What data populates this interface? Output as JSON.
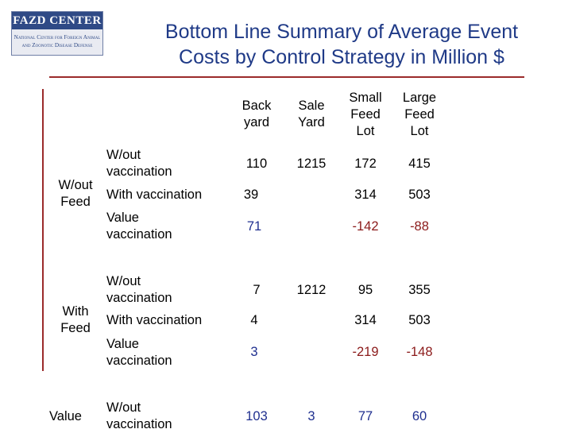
{
  "logo": {
    "name": "FAZD CENTER",
    "line1": "National Center for Foreign Animal",
    "line2": "and Zoonotic Disease Defense"
  },
  "title": {
    "line1": "Bottom Line Summary of Average Event",
    "line2": "Costs by Control Strategy in Million $"
  },
  "columns": [
    {
      "line1": "Back",
      "line2": "yard",
      "line3": ""
    },
    {
      "line1": "Sale",
      "line2": "Yard",
      "line3": ""
    },
    {
      "line1": "Small",
      "line2": "Feed",
      "line3": "Lot"
    },
    {
      "line1": "Large",
      "line2": "Feed",
      "line3": "Lot"
    }
  ],
  "groups": [
    {
      "line1": "W/out",
      "line2": "Feed"
    },
    {
      "line1": "With",
      "line2": "Feed"
    },
    {
      "line1": "Value",
      "line2": ""
    }
  ],
  "rows": [
    {
      "label1": "W/out",
      "label2": "vaccination",
      "values": [
        "110",
        "1215",
        "172",
        "415"
      ]
    },
    {
      "label1": "With vaccination",
      "label2": "",
      "values": [
        "39",
        "",
        "314",
        "503"
      ]
    },
    {
      "label1": "Value",
      "label2": "vaccination",
      "values": [
        "71",
        "",
        "-142",
        "-88"
      ]
    },
    {
      "label1": "W/out",
      "label2": "vaccination",
      "values": [
        "7",
        "1212",
        "95",
        "355"
      ]
    },
    {
      "label1": "With vaccination",
      "label2": "",
      "values": [
        "4",
        "",
        "314",
        "503"
      ]
    },
    {
      "label1": "Value",
      "label2": "vaccination",
      "values": [
        "3",
        "",
        "-219",
        "-148"
      ]
    },
    {
      "label1": "W/out",
      "label2": "vaccination",
      "values": [
        "103",
        "3",
        "77",
        "60"
      ]
    }
  ],
  "colors": {
    "title": "#1f3a87",
    "rule": "#9b2b2b",
    "value_highlight": "#1f2f8f",
    "negative": "#8b1a1a"
  }
}
